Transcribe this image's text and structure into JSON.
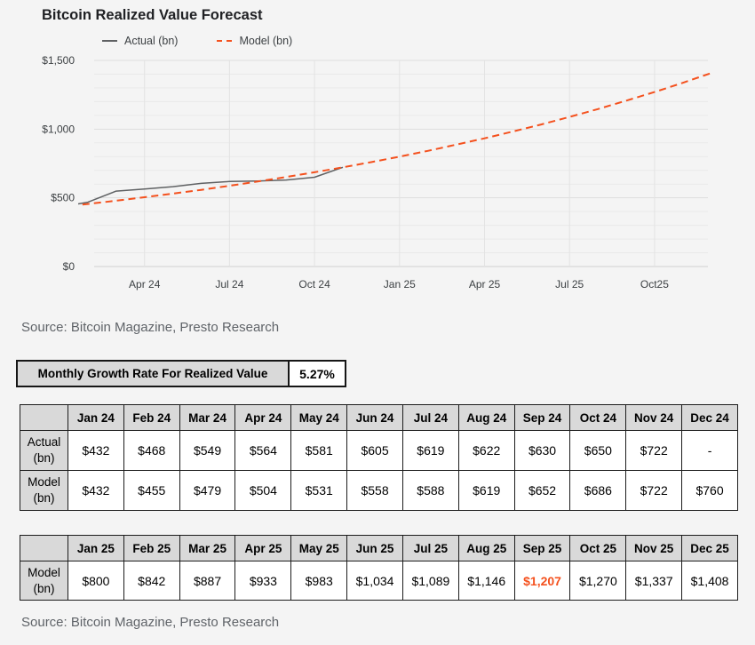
{
  "title": "Bitcoin Realized Value Forecast",
  "source_top": "Source: Bitcoin Magazine, Presto Research",
  "source_bottom": "Source: Bitcoin Magazine, Presto Research",
  "colors": {
    "accent_orange": "#f4511e",
    "actual_line_gray": "#5f6163",
    "table_header_bg": "#d9d9d9",
    "page_bg": "#f4f4f4"
  },
  "chart_data": {
    "type": "line",
    "title": "Bitcoin Realized Value Forecast",
    "xlabel": "",
    "ylabel": "",
    "ylim": [
      0,
      1500
    ],
    "minor_grid_step": 100,
    "grid": true,
    "legend_position": "top",
    "categories": [
      "Jan 24",
      "Feb 24",
      "Mar 24",
      "Apr 24",
      "May 24",
      "Jun 24",
      "Jul 24",
      "Aug 24",
      "Sep 24",
      "Oct 24",
      "Nov 24",
      "Dec 24",
      "Jan 25",
      "Feb 25",
      "Mar 25",
      "Apr 25",
      "May 25",
      "Jun 25",
      "Jul 25",
      "Aug 25",
      "Sep 25",
      "Oct 25",
      "Nov 25",
      "Dec 25"
    ],
    "x_ticks": [
      {
        "index": 3,
        "label": "Apr 24"
      },
      {
        "index": 6,
        "label": "Jul 24"
      },
      {
        "index": 9,
        "label": "Oct 24"
      },
      {
        "index": 12,
        "label": "Jan 25"
      },
      {
        "index": 15,
        "label": "Apr 25"
      },
      {
        "index": 18,
        "label": "Jul 25"
      },
      {
        "index": 21,
        "label": "Oct25"
      }
    ],
    "y_ticks": [
      {
        "value": 0,
        "label": "$0"
      },
      {
        "value": 500,
        "label": "$500"
      },
      {
        "value": 1000,
        "label": "$1,000"
      },
      {
        "value": 1500,
        "label": "$1,500"
      }
    ],
    "series": [
      {
        "name": "Actual (bn)",
        "color": "#5f6163",
        "style": "solid",
        "values": [
          432,
          468,
          549,
          564,
          581,
          605,
          619,
          622,
          630,
          650,
          722,
          null,
          null,
          null,
          null,
          null,
          null,
          null,
          null,
          null,
          null,
          null,
          null,
          null
        ]
      },
      {
        "name": "Model (bn)",
        "color": "#f4511e",
        "style": "dashed",
        "values": [
          432,
          455,
          479,
          504,
          531,
          558,
          588,
          619,
          652,
          686,
          722,
          760,
          800,
          842,
          887,
          933,
          983,
          1034,
          1089,
          1146,
          1207,
          1270,
          1337,
          1408
        ]
      }
    ]
  },
  "growth_table": {
    "label": "Monthly Growth Rate For Realized Value",
    "value": "5.27%"
  },
  "table_2024": {
    "columns": [
      "Jan 24",
      "Feb 24",
      "Mar 24",
      "Apr 24",
      "May 24",
      "Jun 24",
      "Jul 24",
      "Aug 24",
      "Sep 24",
      "Oct 24",
      "Nov 24",
      "Dec 24"
    ],
    "rows": [
      {
        "header": "Actual (bn)",
        "cells": [
          "$432",
          "$468",
          "$549",
          "$564",
          "$581",
          "$605",
          "$619",
          "$622",
          "$630",
          "$650",
          "$722",
          "-"
        ]
      },
      {
        "header": "Model (bn)",
        "cells": [
          "$432",
          "$455",
          "$479",
          "$504",
          "$531",
          "$558",
          "$588",
          "$619",
          "$652",
          "$686",
          "$722",
          "$760"
        ]
      }
    ]
  },
  "table_2025": {
    "columns": [
      "Jan 25",
      "Feb 25",
      "Mar 25",
      "Apr 25",
      "May 25",
      "Jun 25",
      "Jul 25",
      "Aug 25",
      "Sep 25",
      "Oct 25",
      "Nov 25",
      "Dec 25"
    ],
    "rows": [
      {
        "header": "Model (bn)",
        "cells": [
          "$800",
          "$842",
          "$887",
          "$933",
          "$983",
          "$1,034",
          "$1,089",
          "$1,146",
          "$1,207",
          "$1,270",
          "$1,337",
          "$1,408"
        ],
        "highlight_index": 8
      }
    ]
  }
}
